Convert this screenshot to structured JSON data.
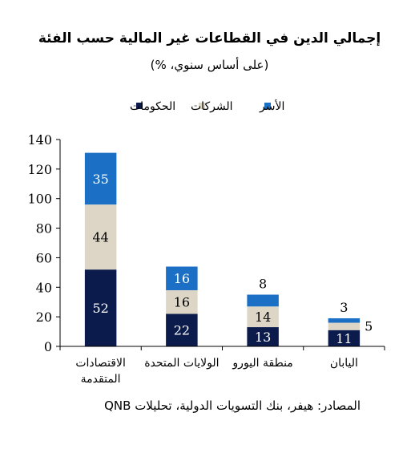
{
  "chart_data": {
    "type": "bar",
    "stacked": true,
    "title": "إجمالي الدين في القطاعات غير المالية حسب الفئة",
    "subtitle": "(على أساس سنوي، %)",
    "categories": [
      [
        "الاقتصادات",
        "المتقدمة"
      ],
      [
        "الولايات المتحدة"
      ],
      [
        "منطقة اليورو"
      ],
      [
        "اليابان"
      ]
    ],
    "series": [
      {
        "name": "الحكومات",
        "color": "#0b1b4b",
        "values": [
          52,
          22,
          13,
          11
        ]
      },
      {
        "name": "الشركات",
        "color": "#ddd6c6",
        "values": [
          44,
          16,
          14,
          5
        ]
      },
      {
        "name": "الأسر",
        "color": "#1b6fc4",
        "values": [
          35,
          16,
          8,
          3
        ]
      }
    ],
    "ylim": [
      0,
      140
    ],
    "yticks": [
      0,
      20,
      40,
      60,
      80,
      100,
      120,
      140
    ],
    "grid": false,
    "legend": "top-center",
    "source": "المصادر: هيفر، بنك التسويات الدولية، تحليلات QNB"
  }
}
